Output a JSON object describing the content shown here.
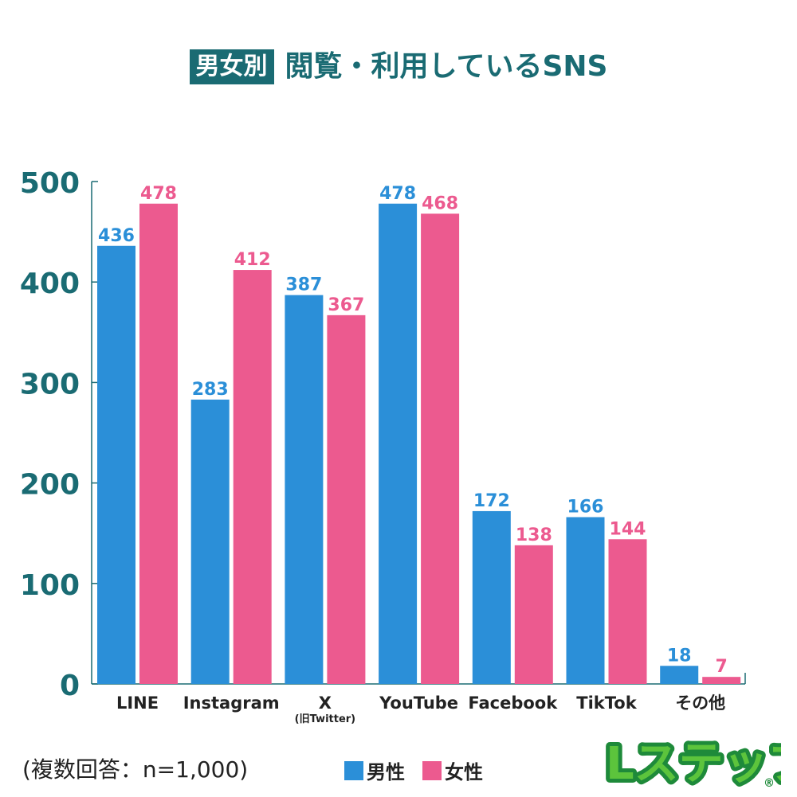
{
  "title": {
    "badge": "男女別",
    "text": "閲覧・利用しているSNS"
  },
  "note": "(複数回答：n=1,000)",
  "legend": {
    "male": "男性",
    "female": "女性"
  },
  "logo": {
    "text": "Lステップ",
    "registered": "®"
  },
  "colors": {
    "male": "#2b8fd8",
    "female": "#ec5a8f",
    "axis_text": "#1a6b73",
    "axis_line": "#1a6b73"
  },
  "chart_data": {
    "type": "bar",
    "title": "男女別 閲覧・利用しているSNS",
    "categories": [
      "LINE",
      "Instagram",
      "X",
      "YouTube",
      "Facebook",
      "TikTok",
      "その他"
    ],
    "category_sublabels": [
      "",
      "",
      "(旧Twitter)",
      "",
      "",
      "",
      ""
    ],
    "series": [
      {
        "name": "男性",
        "values": [
          436,
          283,
          387,
          478,
          172,
          166,
          18
        ]
      },
      {
        "name": "女性",
        "values": [
          478,
          412,
          367,
          468,
          138,
          144,
          7
        ]
      }
    ],
    "yticks": [
      0,
      100,
      200,
      300,
      400,
      500
    ],
    "ylim": [
      0,
      500
    ],
    "xlabel": "",
    "ylabel": "",
    "legend_position": "bottom-center"
  }
}
